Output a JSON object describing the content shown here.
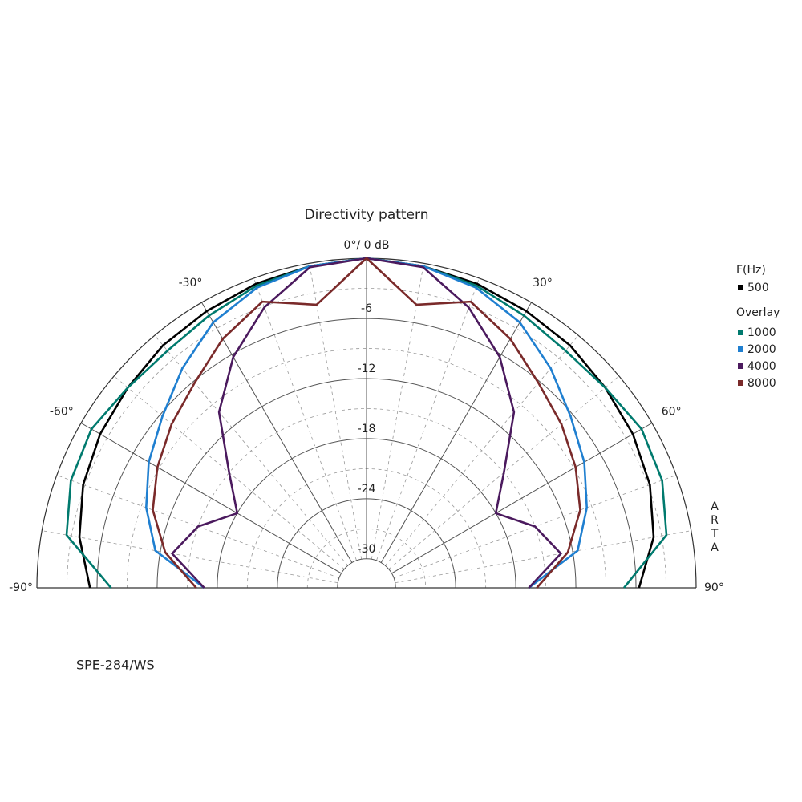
{
  "chart_data": {
    "type": "polar",
    "title": "Directivity pattern",
    "subtitle": "SPE-284/WS",
    "watermark": "ARTA",
    "legend_headers": [
      "F(Hz)",
      "Overlay"
    ],
    "theta": [
      -90,
      -80,
      -70,
      -60,
      -50,
      -40,
      -30,
      -20,
      -10,
      0,
      10,
      20,
      30,
      40,
      50,
      60,
      70,
      80,
      90
    ],
    "thetalim": [
      -90,
      90
    ],
    "thetaticks": [
      {
        "value": -90,
        "label": "-90°"
      },
      {
        "value": -60,
        "label": "-60°"
      },
      {
        "value": -30,
        "label": "-30°"
      },
      {
        "value": 0,
        "label": "0°/ 0 dB"
      },
      {
        "value": 30,
        "label": "30°"
      },
      {
        "value": 60,
        "label": "60°"
      },
      {
        "value": 90,
        "label": "90°"
      }
    ],
    "rlim": [
      -32.9,
      0
    ],
    "rticks": [
      -30,
      -24,
      -18,
      -12,
      -6
    ],
    "grid": true,
    "series": [
      {
        "name": "500",
        "color": "#000000",
        "values": [
          -5.3,
          -3.8,
          -2.8,
          -2.2,
          -1.8,
          -1.3,
          -1.0,
          -0.6,
          -0.3,
          0,
          -0.3,
          -0.6,
          -1.0,
          -1.3,
          -1.8,
          -2.2,
          -2.8,
          -3.8,
          -5.7
        ]
      },
      {
        "name": "1000",
        "color": "#007a6e",
        "values": [
          -7.4,
          -2.5,
          -1.5,
          -1.2,
          -1.8,
          -2.0,
          -1.5,
          -0.8,
          -0.3,
          0,
          -0.3,
          -0.8,
          -1.5,
          -2.0,
          -1.8,
          -1.2,
          -1.5,
          -2.5,
          -7.2
        ]
      },
      {
        "name": "2000",
        "color": "#1f7fd0",
        "values": [
          -16.7,
          -11.5,
          -9.5,
          -7.8,
          -6.3,
          -4.3,
          -2.3,
          -1.0,
          -0.3,
          0,
          -0.3,
          -1.0,
          -2.3,
          -4.3,
          -6.3,
          -7.8,
          -9.5,
          -11.5,
          -16.7
        ]
      },
      {
        "name": "4000",
        "color": "#4b1a5e",
        "values": [
          -16.7,
          -13.2,
          -15.0,
          -18.0,
          -15.0,
          -10.0,
          -6.3,
          -3.1,
          -0.4,
          0,
          -0.4,
          -3.1,
          -6.3,
          -10.0,
          -15.0,
          -18.0,
          -15.0,
          -13.2,
          -16.7
        ]
      },
      {
        "name": "8000",
        "color": "#7a2a2a",
        "values": [
          -15.9,
          -12.5,
          -10.2,
          -8.8,
          -7.5,
          -6.2,
          -4.2,
          -2.5,
          -4.2,
          0,
          -4.2,
          -2.5,
          -4.2,
          -6.2,
          -7.5,
          -8.8,
          -10.2,
          -12.5,
          -15.9
        ]
      }
    ]
  }
}
